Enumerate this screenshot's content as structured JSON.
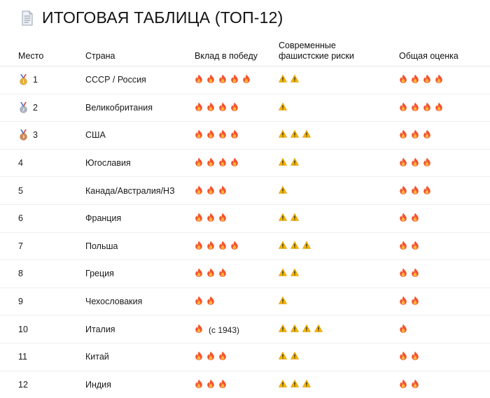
{
  "title": "ИТОГОВАЯ ТАБЛИЦА (ТОП-12)",
  "title_icon": "document-icon",
  "columns": {
    "place": "Место",
    "country": "Страна",
    "contribution": "Вклад в победу",
    "risks": "Современные фашистские риски",
    "overall": "Общая оценка"
  },
  "icons": {
    "contribution": "fire-icon",
    "risks": "warning-icon",
    "overall": "fire-icon"
  },
  "colors": {
    "fire": "#f2542d",
    "fire_inner": "#ffb23e",
    "warning": "#f5b400",
    "gold": "#e8a317",
    "silver": "#9aa7b8",
    "bronze": "#c9743a",
    "ribbon": "#4b7bd1"
  },
  "rows": [
    {
      "place": "1",
      "medal": "gold",
      "country": "СССР / Россия",
      "contribution": 5,
      "contribution_note": "",
      "risks": 2,
      "overall": 4
    },
    {
      "place": "2",
      "medal": "silver",
      "country": "Великобритания",
      "contribution": 4,
      "contribution_note": "",
      "risks": 1,
      "overall": 4
    },
    {
      "place": "3",
      "medal": "bronze",
      "country": "США",
      "contribution": 4,
      "contribution_note": "",
      "risks": 3,
      "overall": 3
    },
    {
      "place": "4",
      "medal": "",
      "country": "Югославия",
      "contribution": 4,
      "contribution_note": "",
      "risks": 2,
      "overall": 3
    },
    {
      "place": "5",
      "medal": "",
      "country": "Канада/Австралия/НЗ",
      "contribution": 3,
      "contribution_note": "",
      "risks": 1,
      "overall": 3
    },
    {
      "place": "6",
      "medal": "",
      "country": "Франция",
      "contribution": 3,
      "contribution_note": "",
      "risks": 2,
      "overall": 2
    },
    {
      "place": "7",
      "medal": "",
      "country": "Польша",
      "contribution": 4,
      "contribution_note": "",
      "risks": 3,
      "overall": 2
    },
    {
      "place": "8",
      "medal": "",
      "country": "Греция",
      "contribution": 3,
      "contribution_note": "",
      "risks": 2,
      "overall": 2
    },
    {
      "place": "9",
      "medal": "",
      "country": "Чехословакия",
      "contribution": 2,
      "contribution_note": "",
      "risks": 1,
      "overall": 2
    },
    {
      "place": "10",
      "medal": "",
      "country": "Италия",
      "contribution": 1,
      "contribution_note": "(с 1943)",
      "risks": 4,
      "overall": 1
    },
    {
      "place": "11",
      "medal": "",
      "country": "Китай",
      "contribution": 3,
      "contribution_note": "",
      "risks": 2,
      "overall": 2
    },
    {
      "place": "12",
      "medal": "",
      "country": "Индия",
      "contribution": 3,
      "contribution_note": "",
      "risks": 3,
      "overall": 2
    }
  ]
}
